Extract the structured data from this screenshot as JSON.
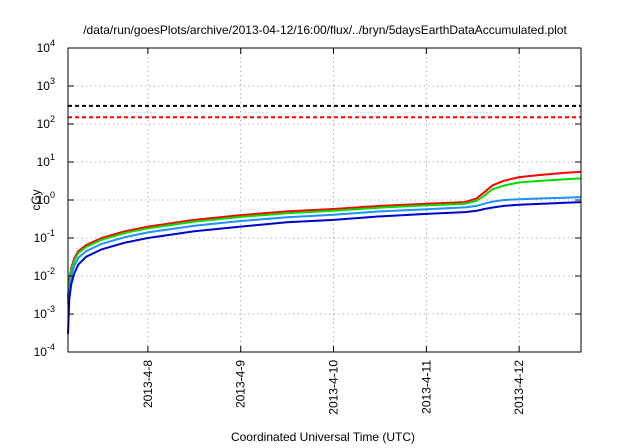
{
  "chart_data": {
    "type": "line",
    "title": "/data/run/goesPlots/archive/2013-04-12/16:00/flux/../bryn/5daysEarthDataAccumulated.plot",
    "xlabel": "Coordinated Universal Time (UTC)",
    "ylabel": "cGy",
    "y_scale": "log",
    "ylim": [
      0.0001,
      10000
    ],
    "xlim": [
      "2013-04-07T03:20",
      "2013-04-12T16:00"
    ],
    "grid": true,
    "x_ticks": [
      "2013-4-8",
      "2013-4-9",
      "2013-4-10",
      "2013-4-11",
      "2013-4-12"
    ],
    "y_ticks": [
      {
        "base": "10",
        "exp": "-4"
      },
      {
        "base": "10",
        "exp": "-3"
      },
      {
        "base": "10",
        "exp": "-2"
      },
      {
        "base": "10",
        "exp": "-1"
      },
      {
        "base": "10",
        "exp": "0"
      },
      {
        "base": "10",
        "exp": "1"
      },
      {
        "base": "10",
        "exp": "2"
      },
      {
        "base": "10",
        "exp": "3"
      },
      {
        "base": "10",
        "exp": "4"
      }
    ],
    "series": [
      {
        "color": "#000000",
        "dashed": true,
        "x": [
          "2013-04-07T03:20",
          "2013-04-12T16:00"
        ],
        "y": [
          300,
          300
        ]
      },
      {
        "color": "#ff0000",
        "dashed": true,
        "x": [
          "2013-04-07T03:20",
          "2013-04-12T16:00"
        ],
        "y": [
          150,
          150
        ]
      },
      {
        "color": "#ff0000",
        "dashed": false,
        "x": [
          "2013-04-07T03:20",
          "2013-04-07T03:40",
          "2013-04-07T04:10",
          "2013-04-07T05:00",
          "2013-04-07T06:00",
          "2013-04-07T08:00",
          "2013-04-07T12:00",
          "2013-04-07T18:00",
          "2013-04-08T00:00",
          "2013-04-08T12:00",
          "2013-04-09T00:00",
          "2013-04-09T12:00",
          "2013-04-10T00:00",
          "2013-04-10T12:00",
          "2013-04-11T00:00",
          "2013-04-11T10:00",
          "2013-04-11T13:00",
          "2013-04-11T15:00",
          "2013-04-11T17:00",
          "2013-04-11T20:00",
          "2013-04-12T00:00",
          "2013-04-12T06:00",
          "2013-04-12T12:00",
          "2013-04-12T16:00"
        ],
        "y": [
          0.003,
          0.008,
          0.016,
          0.03,
          0.045,
          0.065,
          0.1,
          0.15,
          0.2,
          0.3,
          0.4,
          0.5,
          0.58,
          0.7,
          0.8,
          0.88,
          1.1,
          1.6,
          2.4,
          3.2,
          4.0,
          4.6,
          5.2,
          5.5
        ]
      },
      {
        "color": "#00dd00",
        "dashed": false,
        "x": [
          "2013-04-07T03:20",
          "2013-04-07T03:40",
          "2013-04-07T04:10",
          "2013-04-07T05:00",
          "2013-04-07T06:00",
          "2013-04-07T08:00",
          "2013-04-07T12:00",
          "2013-04-07T18:00",
          "2013-04-08T00:00",
          "2013-04-08T12:00",
          "2013-04-09T00:00",
          "2013-04-09T12:00",
          "2013-04-10T00:00",
          "2013-04-10T12:00",
          "2013-04-11T00:00",
          "2013-04-11T10:00",
          "2013-04-11T13:00",
          "2013-04-11T15:00",
          "2013-04-11T17:00",
          "2013-04-11T20:00",
          "2013-04-12T00:00",
          "2013-04-12T06:00",
          "2013-04-12T12:00",
          "2013-04-12T16:00"
        ],
        "y": [
          0.0025,
          0.007,
          0.014,
          0.026,
          0.04,
          0.058,
          0.09,
          0.135,
          0.18,
          0.27,
          0.36,
          0.45,
          0.52,
          0.63,
          0.72,
          0.8,
          0.95,
          1.3,
          1.9,
          2.4,
          2.9,
          3.2,
          3.5,
          3.7
        ]
      },
      {
        "color": "#1e90ff",
        "dashed": false,
        "x": [
          "2013-04-07T03:20",
          "2013-04-07T03:40",
          "2013-04-07T04:10",
          "2013-04-07T05:00",
          "2013-04-07T06:00",
          "2013-04-07T08:00",
          "2013-04-07T12:00",
          "2013-04-07T18:00",
          "2013-04-08T00:00",
          "2013-04-08T12:00",
          "2013-04-09T00:00",
          "2013-04-09T12:00",
          "2013-04-10T00:00",
          "2013-04-10T12:00",
          "2013-04-11T00:00",
          "2013-04-11T10:00",
          "2013-04-11T13:00",
          "2013-04-11T15:00",
          "2013-04-11T17:00",
          "2013-04-11T20:00",
          "2013-04-12T00:00",
          "2013-04-12T06:00",
          "2013-04-12T12:00",
          "2013-04-12T16:00"
        ],
        "y": [
          0.0018,
          0.005,
          0.01,
          0.019,
          0.03,
          0.045,
          0.07,
          0.105,
          0.14,
          0.21,
          0.28,
          0.35,
          0.41,
          0.5,
          0.57,
          0.64,
          0.7,
          0.8,
          0.9,
          1.0,
          1.05,
          1.1,
          1.15,
          1.2
        ]
      },
      {
        "color": "#0000cc",
        "dashed": false,
        "x": [
          "2013-04-07T03:20",
          "2013-04-07T03:40",
          "2013-04-07T04:10",
          "2013-04-07T05:00",
          "2013-04-07T06:00",
          "2013-04-07T08:00",
          "2013-04-07T12:00",
          "2013-04-07T18:00",
          "2013-04-08T00:00",
          "2013-04-08T12:00",
          "2013-04-09T00:00",
          "2013-04-09T12:00",
          "2013-04-10T00:00",
          "2013-04-10T12:00",
          "2013-04-11T00:00",
          "2013-04-11T10:00",
          "2013-04-11T13:00",
          "2013-04-11T15:00",
          "2013-04-11T17:00",
          "2013-04-11T20:00",
          "2013-04-12T00:00",
          "2013-04-12T06:00",
          "2013-04-12T12:00",
          "2013-04-12T16:00"
        ],
        "y": [
          0.0003,
          0.0025,
          0.006,
          0.012,
          0.02,
          0.032,
          0.05,
          0.075,
          0.1,
          0.15,
          0.2,
          0.26,
          0.3,
          0.37,
          0.43,
          0.48,
          0.52,
          0.58,
          0.63,
          0.7,
          0.75,
          0.8,
          0.85,
          0.88
        ]
      }
    ]
  }
}
